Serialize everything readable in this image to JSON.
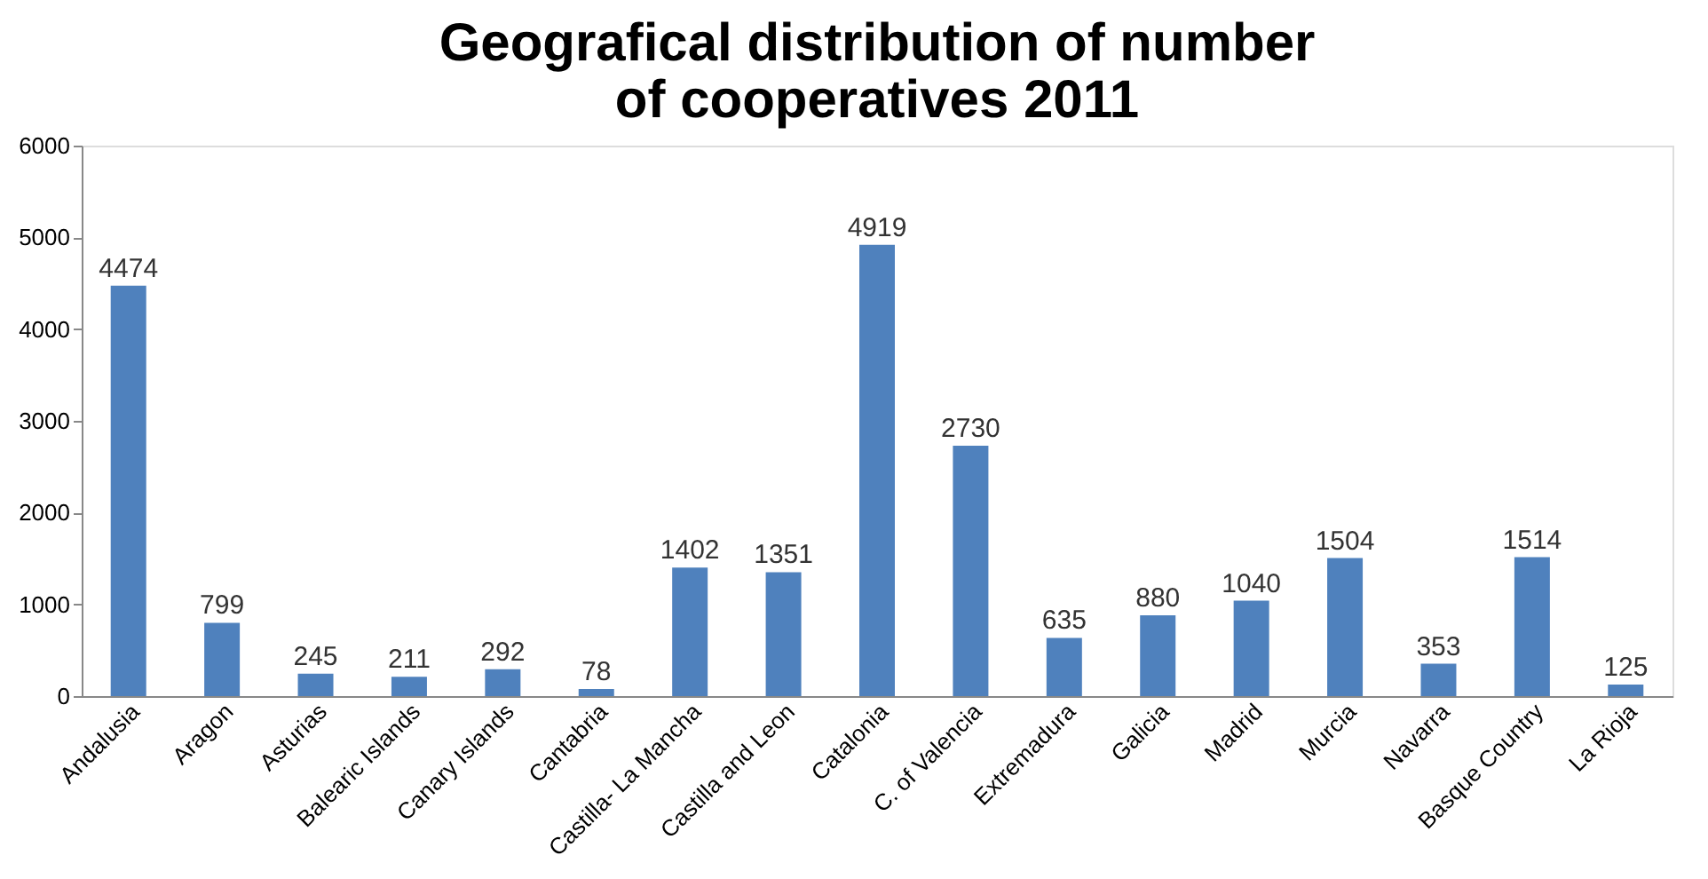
{
  "chart_data": {
    "type": "bar",
    "title": "Geografical distribution of number of cooperatives 2011",
    "categories": [
      "Andalusia",
      "Aragon",
      "Asturias",
      "Balearic Islands",
      "Canary Islands",
      "Cantabria",
      "Castilla- La Mancha",
      "Castilla and Leon",
      "Catalonia",
      "C. of Valencia",
      "Extremadura",
      "Galicia",
      "Madrid",
      "Murcia",
      "Navarra",
      "Basque Country",
      "La Rioja"
    ],
    "values": [
      4474,
      799,
      245,
      211,
      292,
      78,
      1402,
      1351,
      4919,
      2730,
      635,
      880,
      1040,
      1504,
      353,
      1514,
      125
    ],
    "color": "#4f81bd",
    "ylim": [
      0,
      6000
    ],
    "yticks": [
      0,
      1000,
      2000,
      3000,
      4000,
      5000,
      6000
    ],
    "grid": false,
    "data_labels": true
  }
}
